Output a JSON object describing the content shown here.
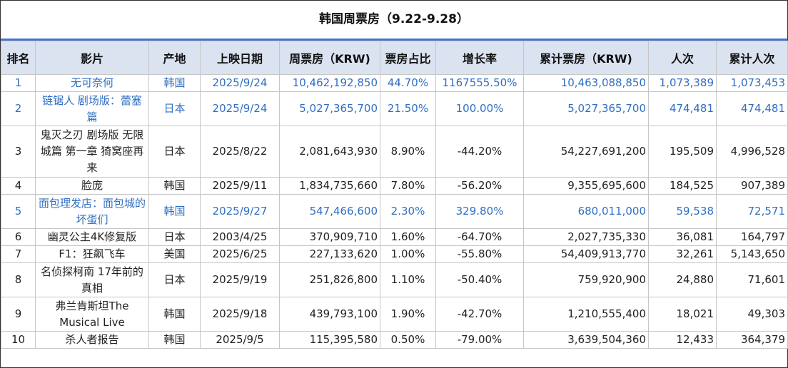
{
  "title": "韩国周票房（9.22-9.28）",
  "headers": [
    "排名",
    "影片",
    "产地",
    "上映日期",
    "周票房（KRW)",
    "票房占比",
    "增长率",
    "累计票房（KRW)",
    "人次",
    "累计人次"
  ],
  "rows": [
    {
      "rank": "1",
      "film": "无可奈何",
      "origin": "韩国",
      "date": "2025/9/24",
      "weekly": "10,462,192,850",
      "share": "44.70%",
      "growth": "1167555.50%",
      "total": "10,463,088,850",
      "admissions": "1,073,389",
      "total_admissions": "1,073,453"
    },
    {
      "rank": "2",
      "film": "链锯人 剧场版：蕾塞篇",
      "origin": "日本",
      "date": "2025/9/24",
      "weekly": "5,027,365,700",
      "share": "21.50%",
      "growth": "100.00%",
      "total": "5,027,365,700",
      "admissions": "474,481",
      "total_admissions": "474,481"
    },
    {
      "rank": "3",
      "film": "鬼灭之刃 剧场版 无限城篇 第一章 猗窝座再来",
      "origin": "日本",
      "date": "2025/8/22",
      "weekly": "2,081,643,930",
      "share": "8.90%",
      "growth": "-44.20%",
      "total": "54,227,691,200",
      "admissions": "195,509",
      "total_admissions": "4,996,528"
    },
    {
      "rank": "4",
      "film": "脸庞",
      "origin": "韩国",
      "date": "2025/9/11",
      "weekly": "1,834,735,660",
      "share": "7.80%",
      "growth": "-56.20%",
      "total": "9,355,695,600",
      "admissions": "184,525",
      "total_admissions": "907,389"
    },
    {
      "rank": "5",
      "film": "面包理发店：面包城的坏蛋们",
      "origin": "韩国",
      "date": "2025/9/27",
      "weekly": "547,466,600",
      "share": "2.30%",
      "growth": "329.80%",
      "total": "680,011,000",
      "admissions": "59,538",
      "total_admissions": "72,571"
    },
    {
      "rank": "6",
      "film": "幽灵公主4K修复版",
      "origin": "日本",
      "date": "2003/4/25",
      "weekly": "370,909,710",
      "share": "1.60%",
      "growth": "-64.70%",
      "total": "2,027,735,330",
      "admissions": "36,081",
      "total_admissions": "164,797"
    },
    {
      "rank": "7",
      "film": "F1：狂飙飞车",
      "origin": "美国",
      "date": "2025/6/25",
      "weekly": "227,133,620",
      "share": "1.00%",
      "growth": "-55.80%",
      "total": "54,409,913,770",
      "admissions": "32,261",
      "total_admissions": "5,143,650"
    },
    {
      "rank": "8",
      "film": "名侦探柯南 17年前的真相",
      "origin": "日本",
      "date": "2025/9/19",
      "weekly": "251,826,800",
      "share": "1.10%",
      "growth": "-50.40%",
      "total": "759,920,900",
      "admissions": "24,880",
      "total_admissions": "71,601"
    },
    {
      "rank": "9",
      "film": "弗兰肯斯坦The Musical Live",
      "origin": "韩国",
      "date": "2025/9/18",
      "weekly": "439,793,100",
      "share": "1.90%",
      "growth": "-42.70%",
      "total": "1,210,555,400",
      "admissions": "18,021",
      "total_admissions": "49,303"
    },
    {
      "rank": "10",
      "film": "杀人者报告",
      "origin": "韩国",
      "date": "2025/9/5",
      "weekly": "115,395,580",
      "share": "0.50%",
      "growth": "-79.00%",
      "total": "3,639,504,360",
      "admissions": "12,433",
      "total_admissions": "364,379"
    }
  ],
  "colors": {
    "header_bg": "#dbe3f1",
    "title_rule": "#4a74c9",
    "highlight_text": "#2f6fc2"
  },
  "chart_data": {
    "type": "table",
    "title": "韩国周票房（9.22-9.28）",
    "columns": [
      "排名",
      "影片",
      "产地",
      "上映日期",
      "周票房（KRW)",
      "票房占比",
      "增长率",
      "累计票房（KRW)",
      "人次",
      "累计人次"
    ],
    "highlighted_rows": [
      1,
      2,
      5
    ]
  }
}
